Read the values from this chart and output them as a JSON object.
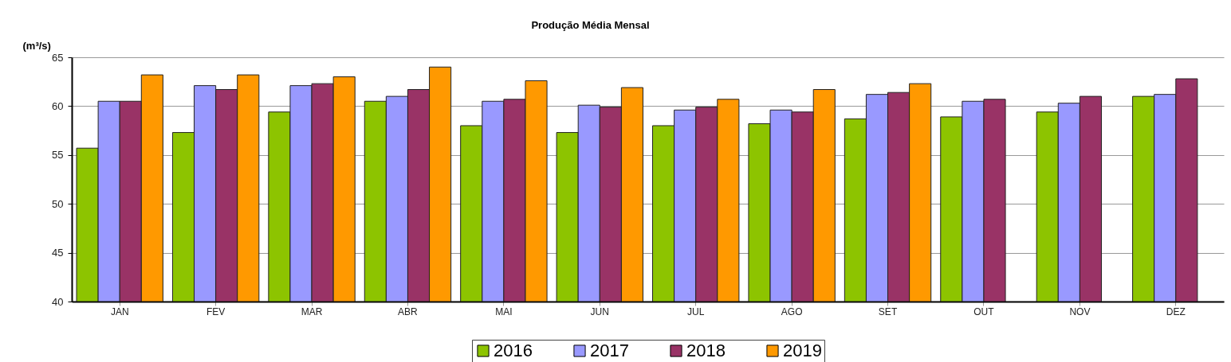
{
  "chart_data": {
    "type": "bar",
    "title": "Produção Média Mensal",
    "ylabel": "(m³/s)",
    "categories": [
      "JAN",
      "FEV",
      "MAR",
      "ABR",
      "MAI",
      "JUN",
      "JUL",
      "AGO",
      "SET",
      "OUT",
      "NOV",
      "DEZ"
    ],
    "series": [
      {
        "name": "2016",
        "color": "#8dc400",
        "values": [
          55.7,
          57.3,
          59.4,
          60.5,
          58.0,
          57.3,
          58.0,
          58.2,
          58.7,
          58.9,
          59.4,
          61.0
        ]
      },
      {
        "name": "2017",
        "color": "#9999ff",
        "values": [
          60.5,
          62.1,
          62.1,
          61.0,
          60.5,
          60.1,
          59.6,
          59.6,
          61.2,
          60.5,
          60.3,
          61.2
        ]
      },
      {
        "name": "2018",
        "color": "#993366",
        "values": [
          60.5,
          61.7,
          62.3,
          61.7,
          60.7,
          59.9,
          59.9,
          59.4,
          61.4,
          60.7,
          61.0,
          62.8
        ]
      },
      {
        "name": "2019",
        "color": "#ff9900",
        "values": [
          63.2,
          63.2,
          63.0,
          64.0,
          62.6,
          61.9,
          60.7,
          61.7,
          62.3,
          null,
          null,
          null
        ]
      }
    ],
    "ylim": [
      40,
      65
    ],
    "yticks": [
      40,
      45,
      50,
      55,
      60,
      65
    ],
    "grid": "y",
    "legend": "bottom"
  }
}
